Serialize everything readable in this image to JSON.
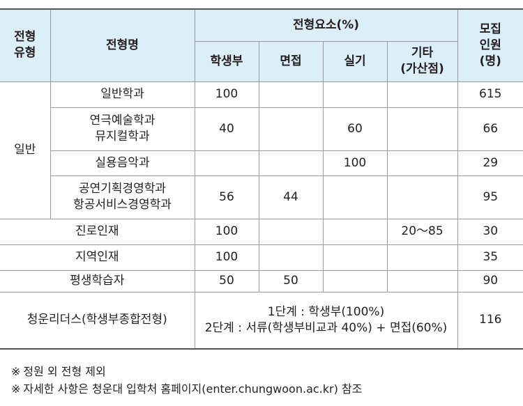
{
  "table": {
    "headers": {
      "type": "전형\n유형",
      "name": "전형명",
      "elements": "전형요소(%)",
      "record": "학생부",
      "interview": "면접",
      "practical": "실기",
      "other": "기타\n(가산점)",
      "quota": "모집\n인원\n(명)"
    },
    "group_label": "일반",
    "general_rows": [
      {
        "name": "일반학과",
        "record": "100",
        "interview": "",
        "practical": "",
        "other": "",
        "quota": "615"
      },
      {
        "name": "연극예술학과\n뮤지컬학과",
        "record": "40",
        "interview": "",
        "practical": "60",
        "other": "",
        "quota": "66"
      },
      {
        "name": "실용음악과",
        "record": "",
        "interview": "",
        "practical": "100",
        "other": "",
        "quota": "29"
      },
      {
        "name": "공연기획경영학과\n항공서비스경영학과",
        "record": "56",
        "interview": "44",
        "practical": "",
        "other": "",
        "quota": "95"
      }
    ],
    "special_rows": [
      {
        "name": "진로인재",
        "record": "100",
        "interview": "",
        "practical": "",
        "other": "20～85",
        "quota": "30"
      },
      {
        "name": "지역인재",
        "record": "100",
        "interview": "",
        "practical": "",
        "other": "",
        "quota": "35"
      },
      {
        "name": "평생학습자",
        "record": "50",
        "interview": "50",
        "practical": "",
        "other": "",
        "quota": "90"
      }
    ],
    "leaders_row": {
      "name": "청운리더스(학생부종합전형)",
      "stages": "1단계 : 학생부(100%)\n2단계 : 서류(학생부비교과 40%) + 면접(60%)",
      "quota": "116"
    }
  },
  "notes": [
    {
      "mark": "※",
      "text": "정원 외 전형 제외"
    },
    {
      "mark": "※",
      "text": "자세한 사항은 청운대 입학처 홈페이지(enter.chungwoon.ac.kr) 참조"
    }
  ],
  "colors": {
    "header_bg": "#dceef8",
    "border": "#9a9a9a",
    "text": "#231f20"
  }
}
